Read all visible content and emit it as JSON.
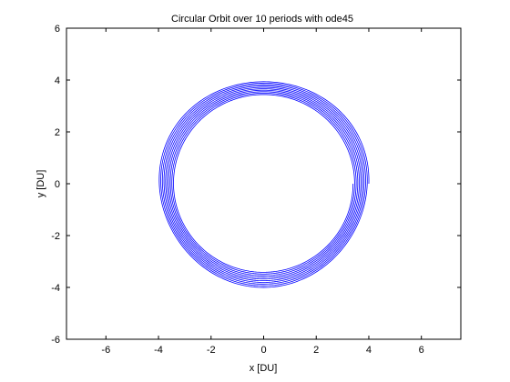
{
  "chart_data": {
    "type": "line",
    "title": "Circular Orbit over 10 periods with ode45",
    "xlabel": "x [DU]",
    "ylabel": "y [DU]",
    "xlim": [
      -7.5,
      7.5
    ],
    "ylim": [
      -6,
      6
    ],
    "xticks": [
      -6,
      -4,
      -2,
      0,
      2,
      4,
      6
    ],
    "yticks": [
      -6,
      -4,
      -2,
      0,
      2,
      4,
      6
    ],
    "grid": false,
    "series": [
      {
        "color": "#0000ff",
        "orbit_periods": 10,
        "start_point": [
          4.0,
          0.0
        ],
        "radius_start": 4.0,
        "radius_end": 3.4,
        "center": [
          0,
          0
        ]
      }
    ]
  }
}
